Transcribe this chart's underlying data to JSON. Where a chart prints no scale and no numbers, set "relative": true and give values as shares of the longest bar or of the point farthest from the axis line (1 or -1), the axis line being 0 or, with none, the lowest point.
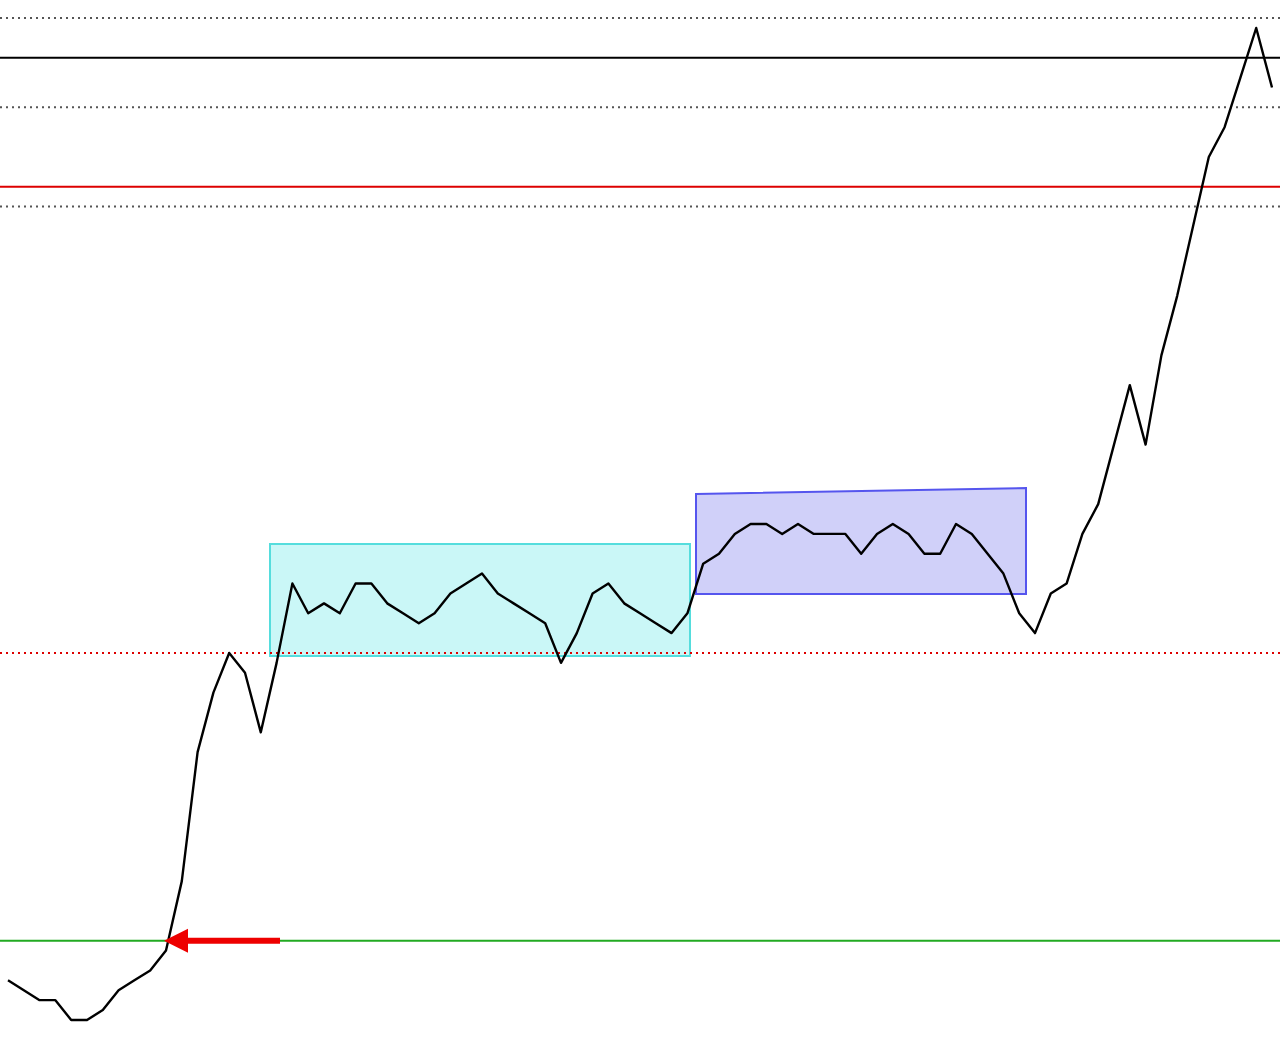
{
  "chart_data": {
    "type": "line",
    "relative": true,
    "marker": "none",
    "line_style": "solid",
    "categories": [
      null,
      null,
      null,
      null,
      null,
      null,
      null,
      null,
      null,
      null,
      null,
      null,
      null,
      null,
      null,
      null,
      null,
      null,
      null,
      null,
      null,
      null,
      null,
      null,
      null,
      null,
      null,
      null,
      null,
      null,
      null,
      null,
      null,
      null,
      null,
      null,
      null,
      null,
      null,
      null,
      null,
      null,
      null,
      null,
      null,
      null,
      null,
      null,
      null,
      null,
      null,
      null,
      null,
      null,
      null,
      null,
      null,
      null,
      null,
      null,
      null,
      null,
      null,
      null,
      null,
      null,
      null,
      null,
      null,
      null,
      null,
      null,
      null,
      null,
      null,
      null,
      null,
      null,
      null,
      null,
      null
    ],
    "series": [
      {
        "color": "#000000",
        "values": [
          0.04,
          0.03,
          0.02,
          0.02,
          0.0,
          0,
          0.01,
          0.03,
          0.04,
          0.05,
          0.07,
          0.14,
          0.27,
          0.33,
          0.37,
          0.35,
          0.29,
          0.36,
          0.44,
          0.41,
          0.42,
          0.41,
          0.44,
          0.44,
          0.42,
          0.41,
          0.4,
          0.41,
          0.43,
          0.44,
          0.45,
          0.43,
          0.42,
          0.41,
          0.4,
          0.36,
          0.39,
          0.43,
          0.44,
          0.42,
          0.41,
          0.4,
          0.39,
          0.41,
          0.46,
          0.47,
          0.49,
          0.5,
          0.5,
          0.49,
          0.5,
          0.49,
          0.49,
          0.49,
          0.47,
          0.49,
          0.5,
          0.49,
          0.47,
          0.47,
          0.5,
          0.49,
          0.47,
          0.45,
          0.41,
          0.39,
          0.43,
          0.44,
          0.49,
          0.52,
          0.58,
          0.64,
          0.58,
          0.67,
          0.73,
          0.8,
          0.87,
          0.9,
          0.95,
          1.0,
          0.94
        ]
      }
    ],
    "ref_lines": [
      {
        "axis": "y",
        "value": 1.01,
        "color": "#555555",
        "line_style": "dotted"
      },
      {
        "axis": "y",
        "value": 0.97,
        "color": "#000000",
        "line_style": "solid"
      },
      {
        "axis": "y",
        "value": 0.92,
        "color": "#555555",
        "line_style": "dotted"
      },
      {
        "axis": "y",
        "value": 0.82,
        "color": "#555555",
        "line_style": "dotted"
      },
      {
        "axis": "y",
        "value": 0.84,
        "color": "#dd0000",
        "line_style": "solid"
      },
      {
        "axis": "y",
        "value": 0.37,
        "color": "#dd0000",
        "line_style": "dotted"
      },
      {
        "axis": "y",
        "value": 0.08,
        "color": "#22aa22",
        "line_style": "solid"
      }
    ]
  }
}
